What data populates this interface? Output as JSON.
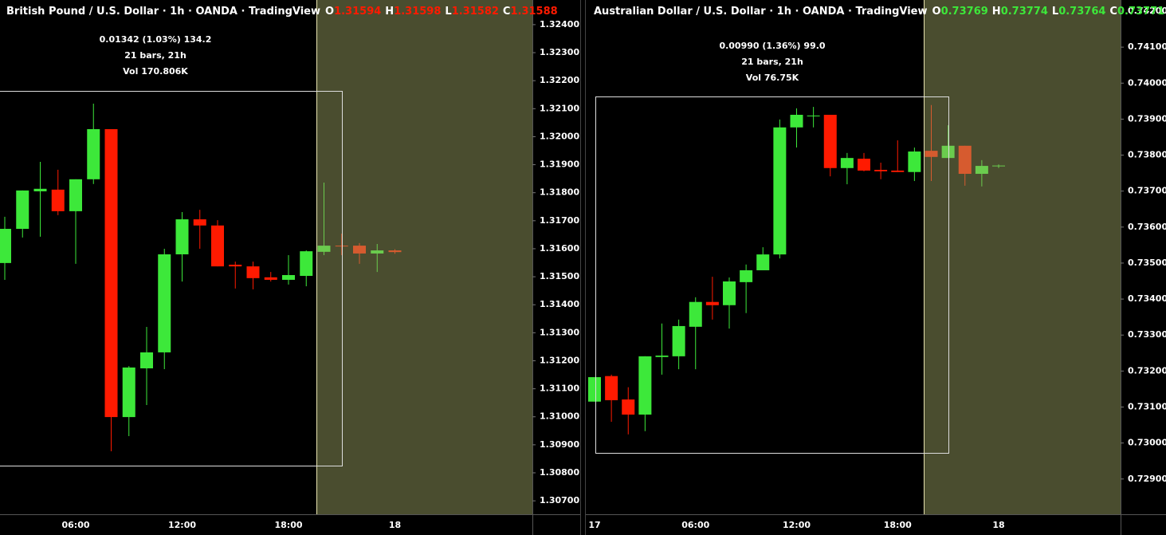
{
  "chart_data": [
    {
      "type": "candlestick",
      "title": "British Pound / U.S. Dollar · 1h · OANDA · TradingView",
      "ohlc_labels": [
        "O",
        "H",
        "L",
        "C"
      ],
      "measure": [
        "0.01342 (1.03%) 134.2",
        "21 bars, 21h",
        "Vol 170.806K"
      ],
      "categories": [
        null,
        null,
        null,
        null,
        "06:00",
        null,
        null,
        null,
        null,
        null,
        "12:00",
        null,
        null,
        null,
        null,
        null,
        "18:00",
        null,
        null,
        null,
        null,
        null,
        "18"
      ],
      "open": [
        1.31549,
        1.31671,
        1.31805,
        1.31811,
        1.31734,
        1.31848,
        1.32027,
        1.30999,
        1.31173,
        1.3123,
        1.3158,
        1.31705,
        1.31683,
        1.31543,
        1.31537,
        1.31498,
        1.31489,
        1.31503,
        1.31589,
        1.31611,
        1.31611,
        1.31583,
        1.31594
      ],
      "high": [
        1.31714,
        1.31808,
        1.3191,
        1.31882,
        1.31848,
        1.32118,
        1.32027,
        1.31181,
        1.31321,
        1.316,
        1.31731,
        1.31739,
        1.31702,
        1.31554,
        1.31554,
        1.31517,
        1.31577,
        1.31594,
        1.31836,
        1.31654,
        1.3162,
        1.31617,
        1.31598
      ],
      "low": [
        1.31489,
        1.3164,
        1.31643,
        1.3172,
        1.31546,
        1.31831,
        1.30877,
        1.30931,
        1.31042,
        1.3117,
        1.31483,
        1.316,
        1.31537,
        1.31458,
        1.31455,
        1.31483,
        1.31472,
        1.31466,
        1.31577,
        1.31577,
        1.31546,
        1.31517,
        1.31582
      ],
      "close": [
        1.31671,
        1.31808,
        1.31814,
        1.31734,
        1.31848,
        1.32027,
        1.30999,
        1.31176,
        1.3123,
        1.3158,
        1.31705,
        1.31683,
        1.31537,
        1.31537,
        1.31495,
        1.31489,
        1.31506,
        1.31591,
        1.31611,
        1.31609,
        1.31583,
        1.31594,
        1.31588
      ],
      "ylim": [
        1.30652,
        1.32488
      ],
      "yticks": [
        {
          "value": 1.307,
          "label": "1.30700"
        },
        {
          "value": 1.308,
          "label": "1.30800"
        },
        {
          "value": 1.309,
          "label": "1.30900"
        },
        {
          "value": 1.31,
          "label": "1.31000"
        },
        {
          "value": 1.311,
          "label": "1.31100"
        },
        {
          "value": 1.312,
          "label": "1.31200"
        },
        {
          "value": 1.313,
          "label": "1.31300"
        },
        {
          "value": 1.314,
          "label": "1.31400"
        },
        {
          "value": 1.315,
          "label": "1.31500"
        },
        {
          "value": 1.316,
          "label": "1.31600"
        },
        {
          "value": 1.317,
          "label": "1.31700"
        },
        {
          "value": 1.318,
          "label": "1.31800"
        },
        {
          "value": 1.319,
          "label": "1.31900"
        },
        {
          "value": 1.32,
          "label": "1.32000"
        },
        {
          "value": 1.321,
          "label": "1.32100"
        },
        {
          "value": 1.322,
          "label": "1.32200"
        },
        {
          "value": 1.323,
          "label": "1.32300"
        },
        {
          "value": 1.324,
          "label": "1.32400"
        }
      ],
      "colors": {
        "up": "#3de83a",
        "down": "#ff1a00"
      }
    },
    {
      "type": "candlestick",
      "title": "Australian Dollar / U.S. Dollar · 1h · OANDA · TradingView",
      "ohlc_labels": [
        "O",
        "H",
        "L",
        "C"
      ],
      "measure": [
        "0.00990 (1.36%) 99.0",
        "21 bars, 21h",
        "Vol 76.75K"
      ],
      "categories": [
        "17",
        null,
        null,
        null,
        null,
        null,
        "06:00",
        null,
        null,
        null,
        null,
        null,
        "12:00",
        null,
        null,
        null,
        null,
        null,
        "18:00",
        null,
        null,
        null,
        null,
        null,
        "18"
      ],
      "open": [
        0.73115,
        0.73186,
        0.73121,
        0.73079,
        0.73239,
        0.73241,
        0.73323,
        0.73392,
        0.73383,
        0.73447,
        0.7348,
        0.73524,
        0.73877,
        0.73908,
        0.73912,
        0.73764,
        0.7379,
        0.73759,
        0.73757,
        0.73753,
        0.73812,
        0.73792,
        0.73826,
        0.73748,
        0.73769
      ],
      "high": [
        0.73183,
        0.7319,
        0.73155,
        0.73241,
        0.73332,
        0.73343,
        0.73405,
        0.73462,
        0.7346,
        0.73496,
        0.73544,
        0.73899,
        0.7393,
        0.73934,
        0.73912,
        0.73806,
        0.73806,
        0.73779,
        0.73841,
        0.73821,
        0.73939,
        0.73883,
        0.73826,
        0.73786,
        0.73774
      ],
      "low": [
        0.73115,
        0.73059,
        0.73024,
        0.73033,
        0.7319,
        0.73205,
        0.73205,
        0.73343,
        0.73318,
        0.73361,
        0.7348,
        0.73513,
        0.73821,
        0.73877,
        0.73741,
        0.73719,
        0.73755,
        0.73733,
        0.73753,
        0.73728,
        0.73728,
        0.73792,
        0.73715,
        0.73713,
        0.73764
      ],
      "close": [
        0.73183,
        0.73119,
        0.73079,
        0.73241,
        0.73243,
        0.73325,
        0.73392,
        0.73383,
        0.73449,
        0.7348,
        0.73524,
        0.73877,
        0.73912,
        0.7391,
        0.73764,
        0.73792,
        0.73757,
        0.73755,
        0.73753,
        0.7381,
        0.73795,
        0.73826,
        0.73748,
        0.7377,
        0.73771
      ],
      "ylim": [
        0.72802,
        0.74231
      ],
      "yticks": [
        {
          "value": 0.729,
          "label": "0.72900"
        },
        {
          "value": 0.73,
          "label": "0.73000"
        },
        {
          "value": 0.731,
          "label": "0.73100"
        },
        {
          "value": 0.732,
          "label": "0.73200"
        },
        {
          "value": 0.733,
          "label": "0.73300"
        },
        {
          "value": 0.734,
          "label": "0.73400"
        },
        {
          "value": 0.735,
          "label": "0.73500"
        },
        {
          "value": 0.736,
          "label": "0.73600"
        },
        {
          "value": 0.737,
          "label": "0.73700"
        },
        {
          "value": 0.738,
          "label": "0.73800"
        },
        {
          "value": 0.739,
          "label": "0.73900"
        },
        {
          "value": 0.74,
          "label": "0.74000"
        },
        {
          "value": 0.741,
          "label": "0.74100"
        },
        {
          "value": 0.742,
          "label": "0.74200"
        }
      ],
      "colors": {
        "up": "#3de83a",
        "down": "#ff1a00"
      }
    }
  ]
}
